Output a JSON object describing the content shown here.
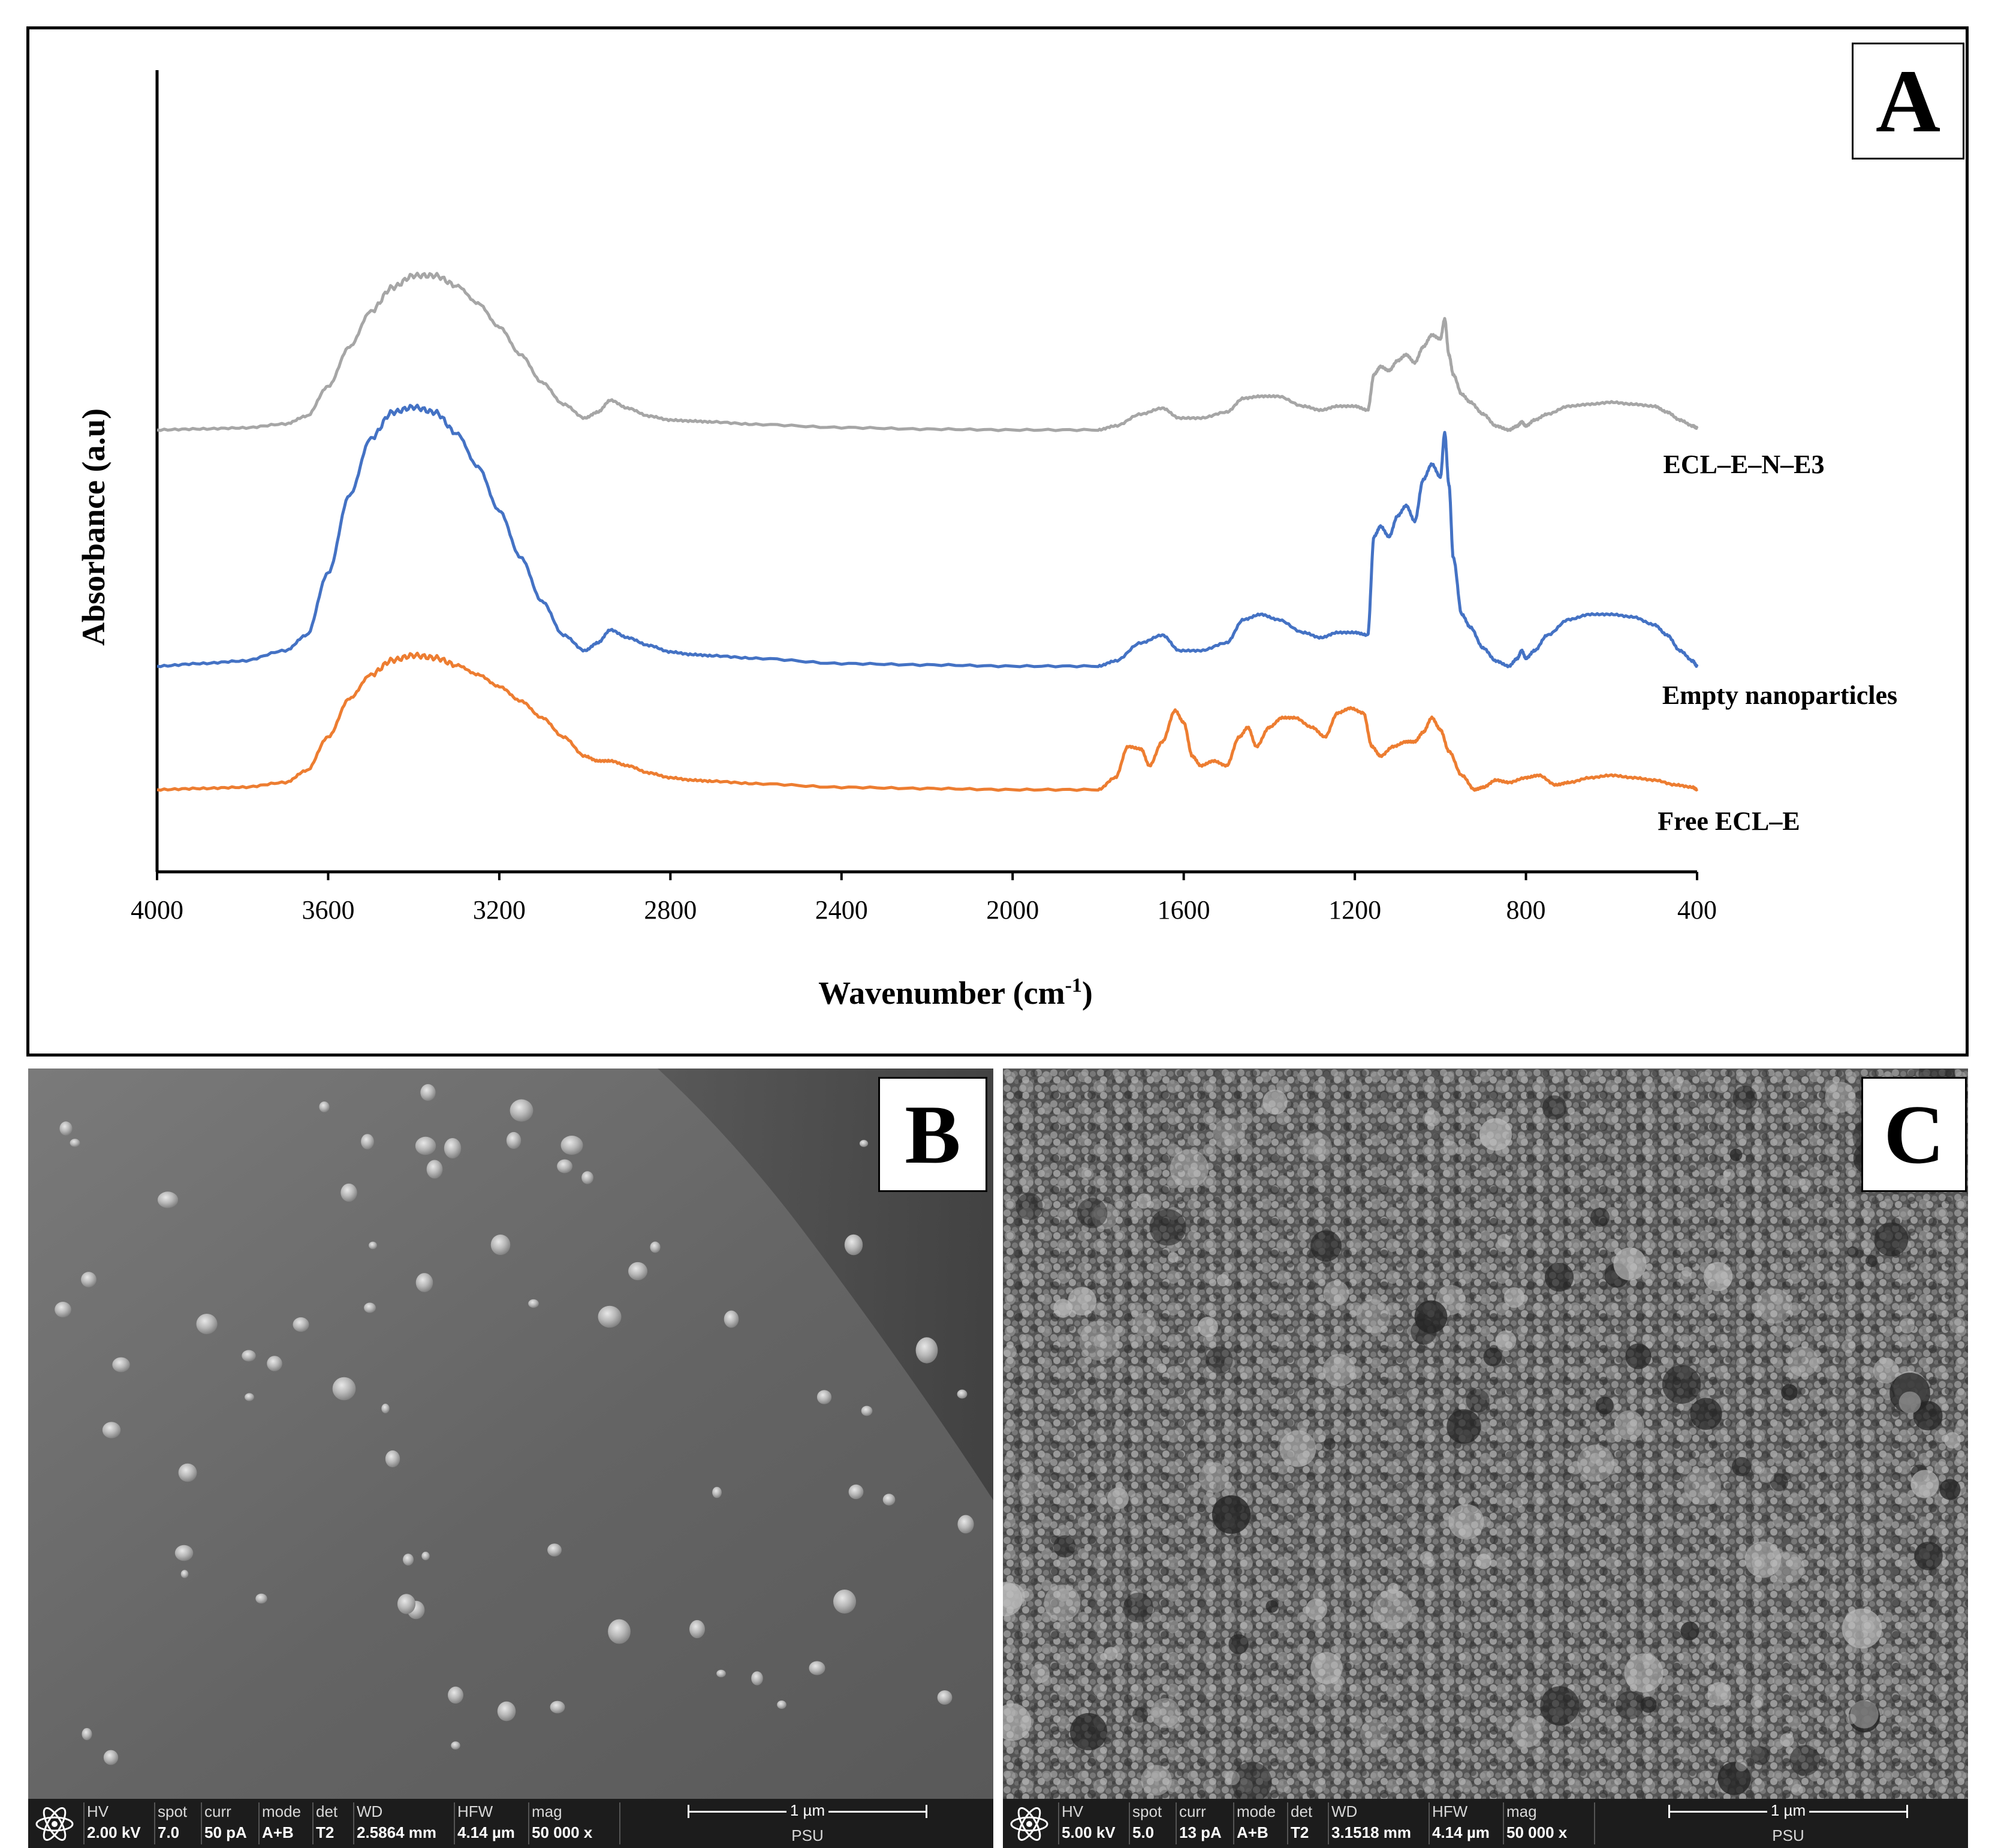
{
  "chart_data": {
    "type": "line",
    "xlabel": "Wavenumber (cm",
    "xlabel_sup": "-1",
    "xlabel_tail": ")",
    "ylabel": "Absorbance (a.u)",
    "xlim": [
      4000,
      400
    ],
    "x_ticks": [
      "4000",
      "3600",
      "3200",
      "2800",
      "2400",
      "2000",
      "1600",
      "1200",
      "800",
      "400"
    ],
    "y_ticks": false,
    "grid": false,
    "series": [
      {
        "name": "ECL–E–N–E3",
        "color": "#a6a6a6",
        "x": [
          4000,
          3900,
          3800,
          3700,
          3650,
          3600,
          3550,
          3500,
          3450,
          3400,
          3350,
          3300,
          3250,
          3200,
          3150,
          3100,
          3050,
          3000,
          2970,
          2940,
          2900,
          2850,
          2800,
          2750,
          2700,
          2600,
          2400,
          2200,
          2000,
          1800,
          1760,
          1700,
          1650,
          1610,
          1560,
          1500,
          1460,
          1420,
          1380,
          1320,
          1280,
          1240,
          1200,
          1170,
          1155,
          1140,
          1120,
          1100,
          1080,
          1060,
          1040,
          1020,
          1000,
          990,
          980,
          970,
          950,
          930,
          900,
          870,
          840,
          820,
          810,
          800,
          780,
          750,
          700,
          650,
          600,
          550,
          500,
          470,
          440,
          410,
          400
        ],
        "y": [
          0.0,
          0.005,
          0.01,
          0.03,
          0.07,
          0.22,
          0.42,
          0.6,
          0.72,
          0.78,
          0.78,
          0.73,
          0.64,
          0.52,
          0.38,
          0.24,
          0.13,
          0.06,
          0.09,
          0.15,
          0.11,
          0.07,
          0.05,
          0.045,
          0.04,
          0.028,
          0.012,
          0.004,
          0.0,
          0.0,
          0.02,
          0.08,
          0.11,
          0.06,
          0.06,
          0.09,
          0.16,
          0.17,
          0.17,
          0.12,
          0.1,
          0.12,
          0.12,
          0.1,
          0.28,
          0.32,
          0.3,
          0.35,
          0.38,
          0.34,
          0.42,
          0.48,
          0.46,
          0.56,
          0.38,
          0.28,
          0.18,
          0.14,
          0.08,
          0.02,
          0.0,
          0.02,
          0.04,
          0.02,
          0.05,
          0.08,
          0.12,
          0.13,
          0.14,
          0.13,
          0.12,
          0.09,
          0.05,
          0.02,
          0.01
        ]
      },
      {
        "name": "Empty nanoparticles",
        "color": "#4472c4",
        "x": [
          4000,
          3900,
          3800,
          3700,
          3650,
          3600,
          3550,
          3500,
          3450,
          3400,
          3350,
          3300,
          3250,
          3200,
          3150,
          3100,
          3050,
          3000,
          2970,
          2940,
          2900,
          2850,
          2800,
          2750,
          2700,
          2600,
          2400,
          2200,
          2000,
          1800,
          1760,
          1700,
          1650,
          1610,
          1560,
          1500,
          1460,
          1420,
          1380,
          1320,
          1280,
          1240,
          1200,
          1170,
          1155,
          1140,
          1120,
          1100,
          1080,
          1060,
          1040,
          1020,
          1000,
          990,
          980,
          970,
          950,
          930,
          900,
          870,
          840,
          820,
          810,
          800,
          780,
          750,
          700,
          650,
          600,
          550,
          500,
          470,
          440,
          410,
          400
        ],
        "y": [
          0.0,
          0.01,
          0.02,
          0.06,
          0.12,
          0.36,
          0.66,
          0.88,
          0.98,
          1.0,
          0.98,
          0.9,
          0.77,
          0.6,
          0.42,
          0.25,
          0.12,
          0.06,
          0.09,
          0.14,
          0.11,
          0.08,
          0.055,
          0.045,
          0.04,
          0.03,
          0.01,
          0.005,
          0.0,
          0.0,
          0.02,
          0.09,
          0.12,
          0.06,
          0.06,
          0.09,
          0.18,
          0.2,
          0.18,
          0.13,
          0.11,
          0.13,
          0.13,
          0.12,
          0.5,
          0.54,
          0.5,
          0.58,
          0.62,
          0.56,
          0.72,
          0.78,
          0.73,
          0.9,
          0.7,
          0.42,
          0.2,
          0.15,
          0.07,
          0.02,
          0.0,
          0.03,
          0.06,
          0.03,
          0.06,
          0.12,
          0.18,
          0.2,
          0.2,
          0.19,
          0.16,
          0.12,
          0.06,
          0.02,
          0.0
        ]
      },
      {
        "name": "Free ECL–E",
        "color": "#ed7d31",
        "x": [
          4000,
          3900,
          3800,
          3700,
          3650,
          3600,
          3550,
          3500,
          3450,
          3400,
          3350,
          3300,
          3250,
          3200,
          3150,
          3100,
          3050,
          3000,
          2970,
          2940,
          2900,
          2850,
          2800,
          2750,
          2700,
          2600,
          2400,
          2200,
          2000,
          1800,
          1760,
          1730,
          1700,
          1680,
          1650,
          1620,
          1600,
          1580,
          1560,
          1530,
          1500,
          1470,
          1450,
          1430,
          1400,
          1370,
          1340,
          1300,
          1270,
          1240,
          1210,
          1180,
          1160,
          1140,
          1110,
          1080,
          1060,
          1040,
          1020,
          1000,
          980,
          950,
          920,
          900,
          870,
          840,
          800,
          770,
          730,
          700,
          650,
          600,
          550,
          500,
          450,
          410,
          400
        ],
        "y": [
          0.0,
          0.005,
          0.01,
          0.03,
          0.08,
          0.22,
          0.38,
          0.48,
          0.54,
          0.56,
          0.55,
          0.52,
          0.48,
          0.43,
          0.37,
          0.3,
          0.22,
          0.14,
          0.12,
          0.12,
          0.1,
          0.07,
          0.05,
          0.04,
          0.035,
          0.025,
          0.01,
          0.005,
          0.0,
          0.0,
          0.05,
          0.18,
          0.17,
          0.1,
          0.2,
          0.33,
          0.28,
          0.14,
          0.1,
          0.12,
          0.1,
          0.22,
          0.26,
          0.18,
          0.26,
          0.3,
          0.3,
          0.26,
          0.22,
          0.32,
          0.34,
          0.32,
          0.18,
          0.14,
          0.18,
          0.2,
          0.2,
          0.24,
          0.3,
          0.25,
          0.16,
          0.06,
          0.0,
          0.01,
          0.04,
          0.03,
          0.05,
          0.06,
          0.02,
          0.03,
          0.05,
          0.06,
          0.05,
          0.04,
          0.02,
          0.01,
          0.0
        ]
      }
    ]
  },
  "panels": {
    "a": {
      "letter": "A"
    },
    "b": {
      "letter": "B",
      "databar": {
        "hv_label": "HV",
        "hv": "2.00 kV",
        "spot_label": "spot",
        "spot": "7.0",
        "curr_label": "curr",
        "curr": "50 pA",
        "mode_label": "mode",
        "mode": "A+B",
        "det_label": "det",
        "det": "T2",
        "wd_label": "WD",
        "wd": "2.5864 mm",
        "hfw_label": "HFW",
        "hfw": "4.14 µm",
        "mag_label": "mag",
        "mag": "50 000 x",
        "scale": "1 µm",
        "lab": "PSU"
      }
    },
    "c": {
      "letter": "C",
      "databar": {
        "hv_label": "HV",
        "hv": "5.00 kV",
        "spot_label": "spot",
        "spot": "5.0",
        "curr_label": "curr",
        "curr": "13 pA",
        "mode_label": "mode",
        "mode": "A+B",
        "det_label": "det",
        "det": "T2",
        "wd_label": "WD",
        "wd": "3.1518 mm",
        "hfw_label": "HFW",
        "hfw": "4.14 µm",
        "mag_label": "mag",
        "mag": "50 000 x",
        "scale": "1 µm",
        "lab": "PSU"
      }
    }
  }
}
